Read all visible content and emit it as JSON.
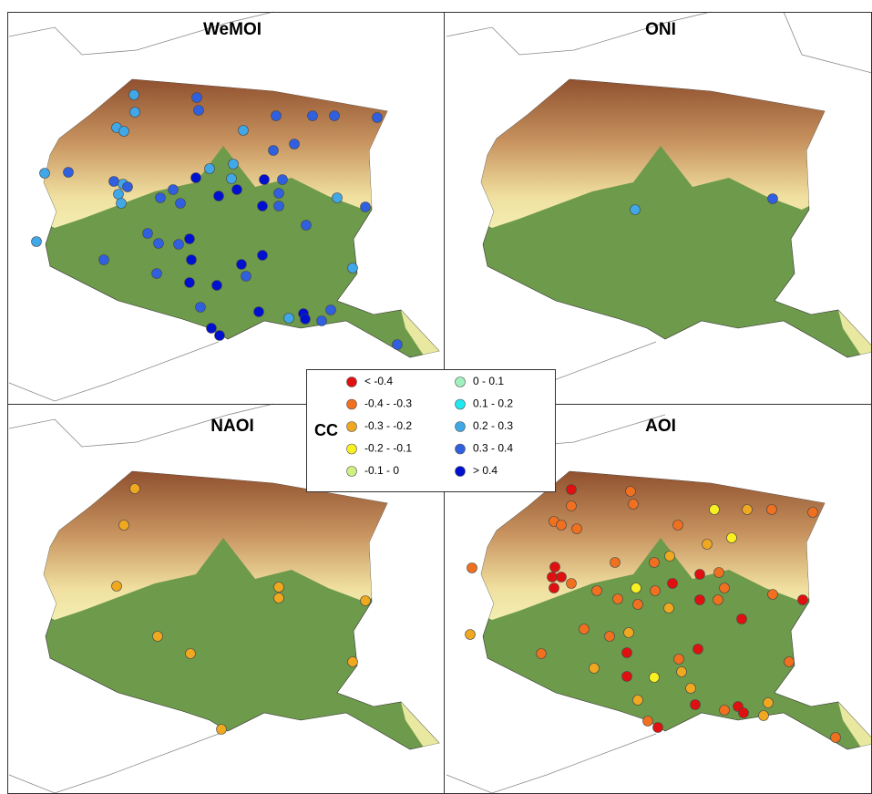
{
  "panels": [
    {
      "title": "WeMOI"
    },
    {
      "title": "ONI"
    },
    {
      "title": "NAOI"
    },
    {
      "title": "AOI"
    }
  ],
  "legend": {
    "title": "CC",
    "items": [
      {
        "label": "< -0.4",
        "color": "#e01010"
      },
      {
        "label": "-0.4 - -0.3",
        "color": "#f07020"
      },
      {
        "label": "-0.3 - -0.2",
        "color": "#f0a820"
      },
      {
        "label": "-0.2 - -0.1",
        "color": "#f8f020"
      },
      {
        "label": "-0.1 - 0",
        "color": "#d0f080"
      },
      {
        "label": "0 - 0.1",
        "color": "#a0f0c0"
      },
      {
        "label": "0.1 - 0.2",
        "color": "#20e8f0"
      },
      {
        "label": "0.2 - 0.3",
        "color": "#40a8e8"
      },
      {
        "label": "0.3 - 0.4",
        "color": "#3060e0"
      },
      {
        "label": "> 0.4",
        "color": "#0010d0"
      }
    ]
  }
}
